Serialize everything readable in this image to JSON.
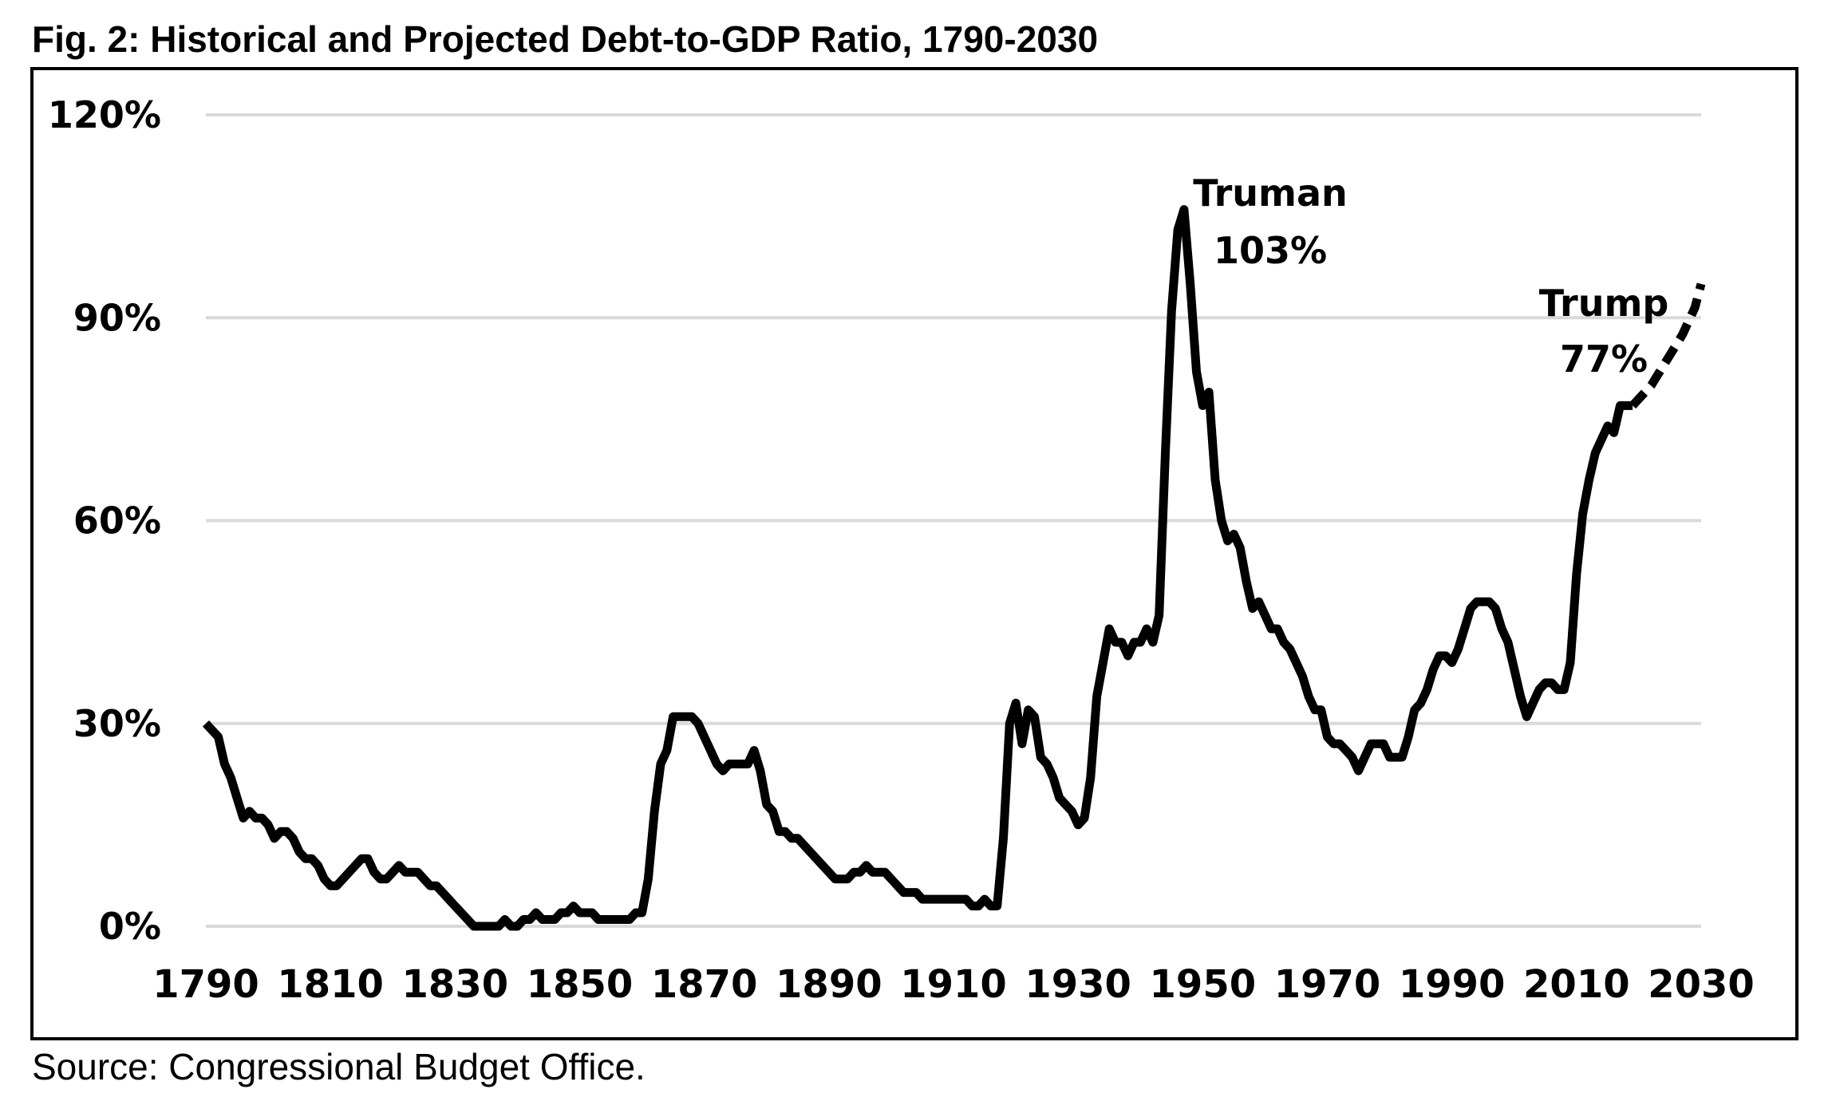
{
  "title": "Fig. 2: Historical and Projected Debt-to-GDP Ratio, 1790-2030",
  "source": "Source: Congressional Budget Office.",
  "chart_data": {
    "type": "line",
    "title": "Fig. 2: Historical and Projected Debt-to-GDP Ratio, 1790-2030",
    "xlabel": "",
    "ylabel": "",
    "xlim": [
      1790,
      2030
    ],
    "ylim": [
      0,
      120
    ],
    "grid": true,
    "x_ticks": [
      "1790",
      "1810",
      "1830",
      "1850",
      "1870",
      "1890",
      "1910",
      "1930",
      "1950",
      "1970",
      "1990",
      "2010",
      "2030"
    ],
    "x_tick_values": [
      1790,
      1810,
      1830,
      1850,
      1870,
      1890,
      1910,
      1930,
      1950,
      1970,
      1990,
      2010,
      2030
    ],
    "y_ticks": [
      "0%",
      "30%",
      "60%",
      "90%",
      "120%"
    ],
    "y_tick_values": [
      0,
      30,
      60,
      90,
      120
    ],
    "colors": {
      "line": "#000000",
      "grid": "#d9d9d9",
      "frame": "#000000"
    },
    "series": [
      {
        "name": "Historical",
        "style": "solid",
        "x": [
          1790,
          1791,
          1792,
          1793,
          1794,
          1795,
          1796,
          1797,
          1798,
          1799,
          1800,
          1801,
          1802,
          1803,
          1804,
          1805,
          1806,
          1807,
          1808,
          1809,
          1810,
          1811,
          1812,
          1813,
          1814,
          1815,
          1816,
          1817,
          1818,
          1819,
          1820,
          1821,
          1822,
          1823,
          1824,
          1825,
          1826,
          1827,
          1828,
          1829,
          1830,
          1831,
          1832,
          1833,
          1834,
          1835,
          1836,
          1837,
          1838,
          1839,
          1840,
          1841,
          1842,
          1843,
          1844,
          1845,
          1846,
          1847,
          1848,
          1849,
          1850,
          1851,
          1852,
          1853,
          1854,
          1855,
          1856,
          1857,
          1858,
          1859,
          1860,
          1861,
          1862,
          1863,
          1864,
          1865,
          1866,
          1867,
          1868,
          1869,
          1870,
          1871,
          1872,
          1873,
          1874,
          1875,
          1876,
          1877,
          1878,
          1879,
          1880,
          1881,
          1882,
          1883,
          1884,
          1885,
          1886,
          1887,
          1888,
          1889,
          1890,
          1891,
          1892,
          1893,
          1894,
          1895,
          1896,
          1897,
          1898,
          1899,
          1900,
          1901,
          1902,
          1903,
          1904,
          1905,
          1906,
          1907,
          1908,
          1909,
          1910,
          1911,
          1912,
          1913,
          1914,
          1915,
          1916,
          1917,
          1918,
          1919,
          1920,
          1921,
          1922,
          1923,
          1924,
          1925,
          1926,
          1927,
          1928,
          1929,
          1930,
          1931,
          1932,
          1933,
          1934,
          1935,
          1936,
          1937,
          1938,
          1939,
          1940,
          1941,
          1942,
          1943,
          1944,
          1945,
          1946,
          1947,
          1948,
          1949,
          1950,
          1951,
          1952,
          1953,
          1954,
          1955,
          1956,
          1957,
          1958,
          1959,
          1960,
          1961,
          1962,
          1963,
          1964,
          1965,
          1966,
          1967,
          1968,
          1969,
          1970,
          1971,
          1972,
          1973,
          1974,
          1975,
          1976,
          1977,
          1978,
          1979,
          1980,
          1981,
          1982,
          1983,
          1984,
          1985,
          1986,
          1987,
          1988,
          1989,
          1990,
          1991,
          1992,
          1993,
          1994,
          1995,
          1996,
          1997,
          1998,
          1999,
          2000,
          2001,
          2002,
          2003,
          2004,
          2005,
          2006,
          2007,
          2008,
          2009,
          2010,
          2011,
          2012,
          2013,
          2014,
          2015,
          2016,
          2017,
          2018,
          2019
        ],
        "y": [
          30,
          29,
          28,
          24,
          22,
          19,
          16,
          17,
          16,
          16,
          15,
          13,
          14,
          14,
          13,
          11,
          10,
          10,
          9,
          7,
          6,
          6,
          7,
          8,
          9,
          10,
          10,
          8,
          7,
          7,
          8,
          9,
          8,
          8,
          8,
          7,
          6,
          6,
          5,
          4,
          3,
          2,
          1,
          0,
          0,
          0,
          0,
          0,
          1,
          0,
          0,
          1,
          1,
          2,
          1,
          1,
          1,
          2,
          2,
          3,
          2,
          2,
          2,
          1,
          1,
          1,
          1,
          1,
          1,
          2,
          2,
          7,
          17,
          24,
          26,
          31,
          31,
          31,
          31,
          30,
          28,
          26,
          24,
          23,
          24,
          24,
          24,
          24,
          26,
          23,
          18,
          17,
          14,
          14,
          13,
          13,
          12,
          11,
          10,
          9,
          8,
          7,
          7,
          7,
          8,
          8,
          9,
          8,
          8,
          8,
          7,
          6,
          5,
          5,
          5,
          4,
          4,
          4,
          4,
          4,
          4,
          4,
          4,
          3,
          3,
          4,
          3,
          3,
          13,
          30,
          33,
          27,
          32,
          31,
          25,
          24,
          22,
          19,
          18,
          17,
          15,
          16,
          22,
          34,
          39,
          44,
          42,
          42,
          40,
          42,
          42,
          44,
          42,
          46,
          70,
          91,
          103,
          106,
          95,
          82,
          77,
          79,
          66,
          60,
          57,
          58,
          56,
          51,
          47,
          48,
          46,
          44,
          44,
          42,
          41,
          39,
          37,
          34,
          32,
          32,
          28,
          27,
          27,
          26,
          25,
          23,
          25,
          27,
          27,
          27,
          25,
          25,
          25,
          28,
          32,
          33,
          35,
          38,
          40,
          40,
          39,
          41,
          44,
          47,
          48,
          48,
          48,
          47,
          44,
          42,
          38,
          34,
          31,
          33,
          35,
          36,
          36,
          35,
          35,
          39,
          52,
          61,
          66,
          70,
          72,
          74,
          73,
          77,
          77,
          77
        ]
      },
      {
        "name": "Projected",
        "style": "dashed",
        "x": [
          2019,
          2020,
          2021,
          2022,
          2023,
          2024,
          2025,
          2026,
          2027,
          2028,
          2029,
          2030
        ],
        "y": [
          77,
          78,
          79,
          80,
          81.5,
          83,
          84.5,
          86,
          87.5,
          89.5,
          91.5,
          95
        ]
      }
    ],
    "annotations": [
      {
        "label": "Truman",
        "value": "103%",
        "anchor_x": 1946,
        "anchor_y": 106
      },
      {
        "label": "Trump",
        "value": "77%",
        "anchor_x": 2019,
        "anchor_y": 77
      }
    ]
  }
}
